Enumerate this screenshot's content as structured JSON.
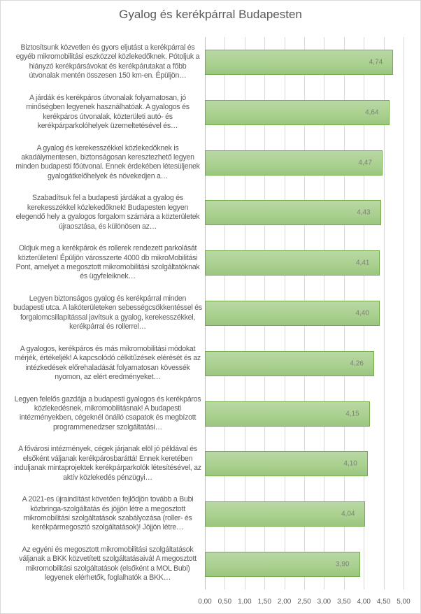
{
  "chart_data": {
    "type": "bar",
    "orientation": "horizontal",
    "title": "Gyalog és kerékpárral Budapesten",
    "xlabel": "",
    "ylabel": "",
    "xlim": [
      0,
      5
    ],
    "grid": true,
    "colors": {
      "bar_fill": "#a9d08e",
      "bar_border": "#70ad47"
    },
    "x_ticks": [
      "0,00",
      "0,50",
      "1,00",
      "1,50",
      "2,00",
      "2,50",
      "3,00",
      "3,50",
      "4,00",
      "4,50",
      "5,00"
    ],
    "categories": [
      "Biztosítsunk közvetlen és gyors eljutást a kerékpárral és egyéb mikromobilitási eszközzel közlekedőknek. Pótoljuk a hiányzó kerékpársávokat és kerékpárutakat a főbb útvonalak mentén összesen 150 km-en. Épüljön…",
      "A járdák és kerékpáros útvonalak folyamatosan, jó minőségben legyenek használhatóak. A gyalogos és kerékpáros útvonalak, közterületi autó- és kerékpárparkolóhelyek üzemeltetésével és…",
      "A gyalog és kerekesszékkel közlekedőknek is akadálymentesen, biztonságosan keresztezhető legyen minden budapesti főútvonal. Ennek érdekében létesüljenek gyalogátkelőhelyek és növekedjen a…",
      "Szabadítsuk fel a budapesti járdákat a gyalog és kerekesszékkel közlekedőknek! Budapesten legyen elegendő hely a gyalogos forgalom számára a közterületek újraosztása, és különösen az…",
      "Oldjuk meg a kerékpárok és rollerek rendezett parkolását közterületen!  Épüljön városszerte 4000 db mikroMobilitási Pont, amelyet a megosztott mikromobilitási szolgáltatóknak és ügyfeleiknek…",
      "Legyen biztonságos gyalog és kerékpárral minden budapesti utca. A lakóterületeken sebességcsökkentéssel és forgalomcsillapítással javítsuk a gyalog, kerekesszékkel, kerékpárral és rollerrel…",
      "A gyalogos, kerékpáros és más mikromobilitási módokat mérjék, értékeljék! A kapcsolódó célkitűzések elérését és az intézkedések előrehaladását folyamatosan kövessék nyomon, az elért eredményeket…",
      "Legyen felelős gazdája a budapesti gyalogos és kerékpáros közlekedésnek, mikromobilitásnak! A budapesti intézményekben, cégeknél önálló csapatok és megbízott programmenedzser szolgáltatási…",
      "A fővárosi intézmények, cégek járjanak elöl jó példával és elsőként váljanak kerékpárosbaráttá! Ennek keretében induljanak mintaprojektek kerékpárparkolók létesítésével, az aktív közlekedés pénzügyi…",
      "A 2021-es újraindítást követően fejlődjön tovább a Bubi közbringa-szolgáltatás és jöjjön létre a megosztott mikromobilitási szolgáltatások szabályozása (roller- és kerékpármegosztó szolgáltatások)! Jöjjön létre…",
      "Az egyéni és megosztott mikromobilitási szolgáltatások váljanak a BKK közvetített szolgáltatásaivá! A megosztott mikromobilitási szolgáltatások (elsőként a MOL Bubi) legyenek elérhetők, foglalhatók a BKK…"
    ],
    "values": [
      4.74,
      4.64,
      4.47,
      4.43,
      4.41,
      4.4,
      4.26,
      4.15,
      4.1,
      4.04,
      3.9
    ],
    "value_labels": [
      "4,74",
      "4,64",
      "4,47",
      "4,43",
      "4,41",
      "4,40",
      "4,26",
      "4,15",
      "4,10",
      "4,04",
      "3,90"
    ]
  }
}
